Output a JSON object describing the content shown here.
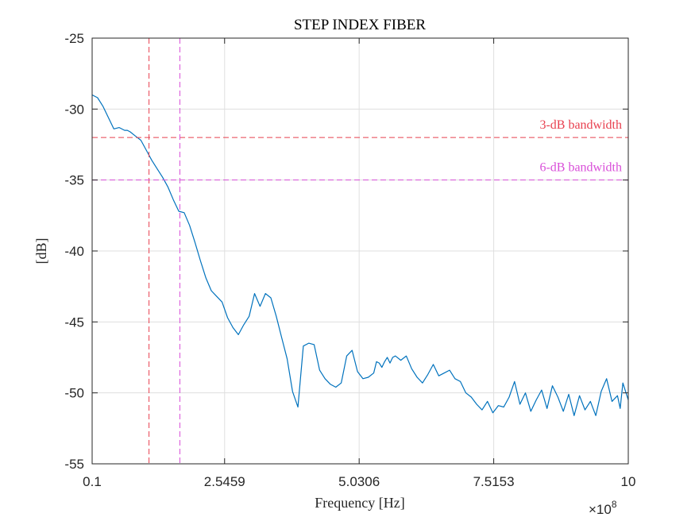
{
  "chart_data": {
    "type": "line",
    "title": "STEP INDEX FIBER",
    "xlabel": "Frequency [Hz]",
    "ylabel": "[dB]",
    "x_exponent_label": "×10",
    "x_exponent_power": "8",
    "x_scale": 100000000,
    "xlim": [
      0.1,
      10
    ],
    "ylim": [
      -55,
      -25
    ],
    "xticks": [
      0.1,
      2.5459,
      5.0306,
      7.5153,
      10
    ],
    "xtick_labels": [
      "0.1",
      "2.5459",
      "5.0306",
      "7.5153",
      "10"
    ],
    "yticks": [
      -55,
      -50,
      -45,
      -40,
      -35,
      -30,
      -25
    ],
    "ytick_labels": [
      "-55",
      "-50",
      "-45",
      "-40",
      "-35",
      "-30",
      "-25"
    ],
    "grid": true,
    "colors": {
      "series": "#0072BD",
      "bw3": "#E8404F",
      "bw6": "#D94FD9",
      "grid": "#DFDFDF",
      "axis": "#262626"
    },
    "annotations": [
      {
        "text": "3-dB bandwidth",
        "y": -32,
        "color": "#E8404F",
        "vline_x": 1.15
      },
      {
        "text": "6-dB bandwidth",
        "y": -35,
        "color": "#D94FD9",
        "vline_x": 1.72
      }
    ],
    "series": [
      {
        "x": [
          0.1,
          0.2,
          0.3,
          0.4,
          0.5,
          0.6,
          0.7,
          0.75,
          0.8,
          0.9,
          1.0,
          1.1,
          1.2,
          1.3,
          1.4,
          1.5,
          1.6,
          1.7,
          1.8,
          1.9,
          2.0,
          2.1,
          2.2,
          2.3,
          2.4,
          2.5,
          2.6,
          2.7,
          2.8,
          2.9,
          3.0,
          3.1,
          3.2,
          3.3,
          3.4,
          3.5,
          3.6,
          3.7,
          3.8,
          3.9,
          4.0,
          4.1,
          4.2,
          4.3,
          4.4,
          4.5,
          4.6,
          4.7,
          4.8,
          4.9,
          5.0,
          5.1,
          5.2,
          5.3,
          5.35,
          5.4,
          5.45,
          5.5,
          5.55,
          5.6,
          5.65,
          5.7,
          5.8,
          5.9,
          6.0,
          6.1,
          6.2,
          6.3,
          6.4,
          6.5,
          6.6,
          6.7,
          6.8,
          6.9,
          7.0,
          7.1,
          7.2,
          7.3,
          7.4,
          7.5,
          7.6,
          7.7,
          7.8,
          7.9,
          8.0,
          8.1,
          8.2,
          8.3,
          8.4,
          8.5,
          8.6,
          8.7,
          8.8,
          8.9,
          9.0,
          9.1,
          9.2,
          9.3,
          9.4,
          9.5,
          9.6,
          9.7,
          9.8,
          9.85,
          9.9,
          10.0
        ],
        "y": [
          -29.0,
          -29.2,
          -29.8,
          -30.6,
          -31.4,
          -31.3,
          -31.5,
          -31.5,
          -31.6,
          -31.9,
          -32.2,
          -32.9,
          -33.6,
          -34.2,
          -34.8,
          -35.5,
          -36.4,
          -37.2,
          -37.3,
          -38.2,
          -39.4,
          -40.7,
          -41.9,
          -42.8,
          -43.2,
          -43.6,
          -44.7,
          -45.4,
          -45.9,
          -45.2,
          -44.6,
          -43.0,
          -43.9,
          -43.0,
          -43.3,
          -44.6,
          -46.1,
          -47.6,
          -49.9,
          -51.0,
          -46.7,
          -46.5,
          -46.6,
          -48.4,
          -49.0,
          -49.4,
          -49.6,
          -49.3,
          -47.4,
          -47.0,
          -48.5,
          -49.0,
          -48.9,
          -48.6,
          -47.8,
          -47.9,
          -48.2,
          -47.8,
          -47.5,
          -47.9,
          -47.5,
          -47.4,
          -47.7,
          -47.4,
          -48.3,
          -48.9,
          -49.3,
          -48.7,
          -48.0,
          -48.8,
          -48.6,
          -48.4,
          -49.0,
          -49.2,
          -50.0,
          -50.3,
          -50.8,
          -51.2,
          -50.6,
          -51.4,
          -50.9,
          -51.0,
          -50.3,
          -49.2,
          -50.8,
          -50.0,
          -51.3,
          -50.5,
          -49.8,
          -51.1,
          -49.5,
          -50.3,
          -51.3,
          -50.1,
          -51.6,
          -50.2,
          -51.2,
          -50.6,
          -51.6,
          -49.9,
          -49.0,
          -50.6,
          -50.2,
          -51.1,
          -49.3,
          -50.5
        ],
        "color": "#0072BD"
      }
    ]
  }
}
